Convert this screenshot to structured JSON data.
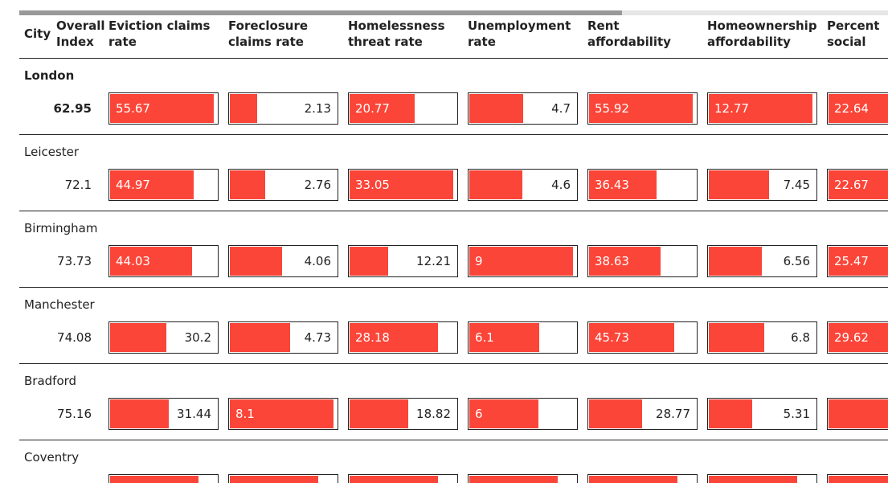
{
  "table": {
    "headers": [
      "City",
      "Overall Index",
      "Eviction claims rate",
      "Foreclosure claims rate",
      "Homelessness threat rate",
      "Unemployment rate",
      "Rent affordability",
      "Homeownership affordability",
      "Percent social housing"
    ],
    "rows": [
      {
        "city": "London",
        "index": 62.95,
        "cells": [
          55.67,
          2.13,
          20.77,
          4.7,
          55.92,
          12.77,
          22.64
        ]
      },
      {
        "city": "Leicester",
        "index": 72.1,
        "cells": [
          44.97,
          2.76,
          33.05,
          4.6,
          36.43,
          7.45,
          22.67
        ]
      },
      {
        "city": "Birmingham",
        "index": 73.73,
        "cells": [
          44.03,
          4.06,
          12.21,
          9,
          38.63,
          6.56,
          25.47
        ]
      },
      {
        "city": "Manchester",
        "index": 74.08,
        "cells": [
          30.2,
          4.73,
          28.18,
          6.1,
          45.73,
          6.8,
          29.62
        ]
      },
      {
        "city": "Bradford",
        "index": 75.16,
        "cells": [
          31.44,
          8.1,
          18.82,
          6,
          28.77,
          5.31,
          null
        ]
      },
      {
        "city": "Coventry"
      }
    ]
  }
}
